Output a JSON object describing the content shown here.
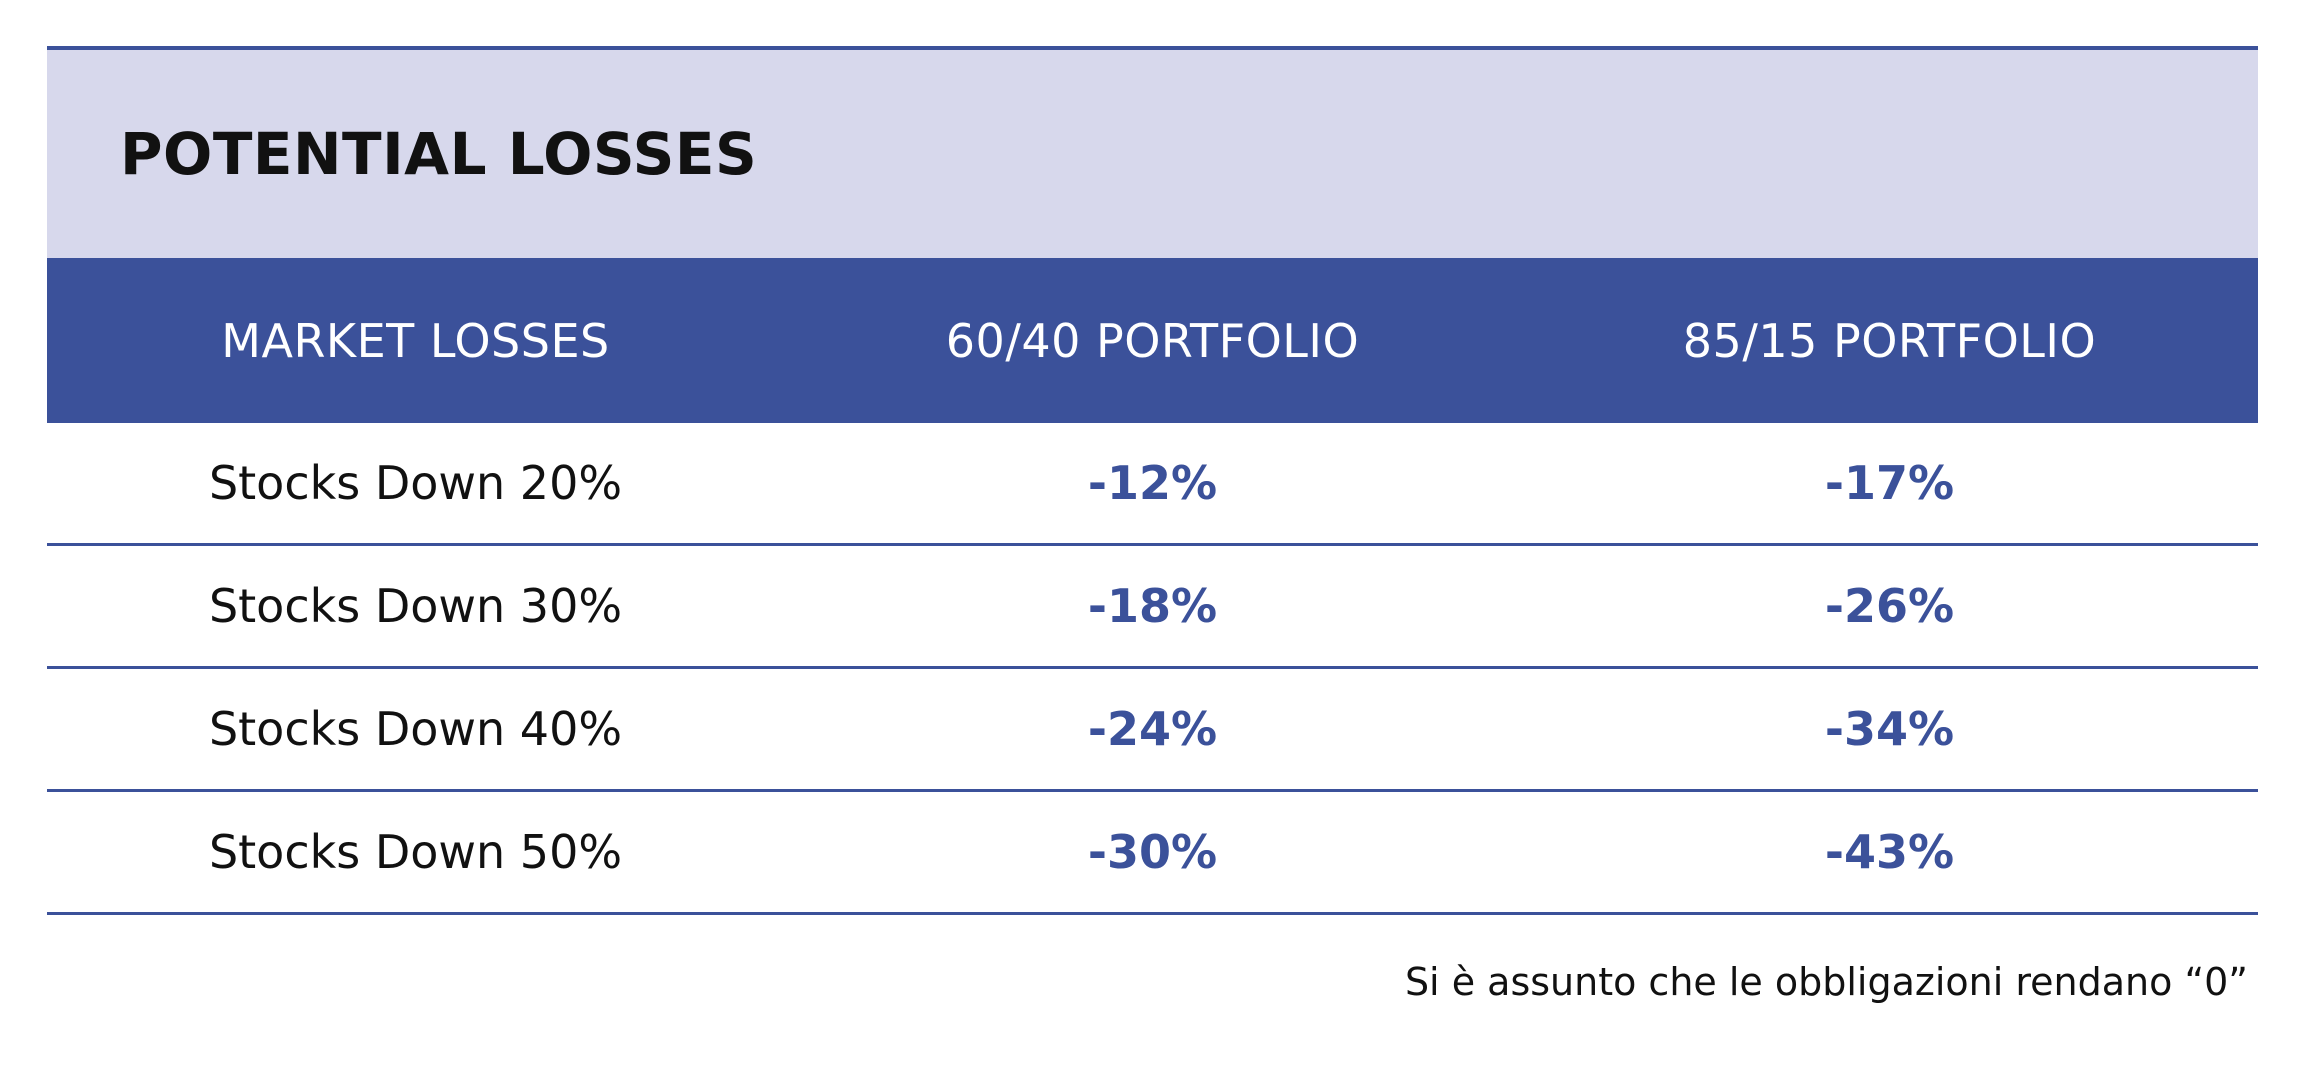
{
  "chart_data": {
    "type": "table",
    "title": "POTENTIAL LOSSES",
    "columns": [
      "MARKET LOSSES",
      "60/40 PORTFOLIO",
      "85/15 PORTFOLIO"
    ],
    "rows": [
      [
        "Stocks Down 20%",
        "-12%",
        "-17%"
      ],
      [
        "Stocks Down 30%",
        "-18%",
        "-26%"
      ],
      [
        "Stocks Down 40%",
        "-24%",
        "-34%"
      ],
      [
        "Stocks Down 50%",
        "-30%",
        "-43%"
      ]
    ],
    "footnote": "Si è assunto che le obbligazioni rendano “0”"
  },
  "colors": {
    "accent": "#3b519a",
    "title_background": "#d7d8ec",
    "text": "#111111"
  }
}
